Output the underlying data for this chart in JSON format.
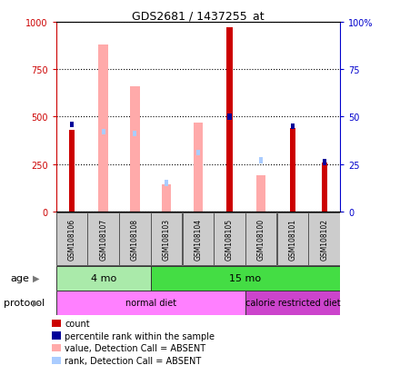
{
  "title": "GDS2681 / 1437255_at",
  "samples": [
    "GSM108106",
    "GSM108107",
    "GSM108108",
    "GSM108103",
    "GSM108104",
    "GSM108105",
    "GSM108100",
    "GSM108101",
    "GSM108102"
  ],
  "count_values": [
    430,
    0,
    0,
    0,
    0,
    970,
    0,
    440,
    260
  ],
  "rank_percentile": [
    46,
    0,
    0,
    0,
    0,
    50,
    0,
    45,
    26
  ],
  "absent_value_values": [
    0,
    880,
    660,
    145,
    470,
    0,
    190,
    0,
    0
  ],
  "absent_rank_pct": [
    0,
    42,
    41,
    15,
    31,
    0,
    27,
    0,
    0
  ],
  "ylim_left": [
    0,
    1000
  ],
  "ylim_right": [
    0,
    100
  ],
  "yticks_left": [
    0,
    250,
    500,
    750,
    1000
  ],
  "yticks_right": [
    0,
    25,
    50,
    75,
    100
  ],
  "age_groups": [
    {
      "label": "4 mo",
      "start": 0,
      "end": 3,
      "color": "#aaeaaa"
    },
    {
      "label": "15 mo",
      "start": 3,
      "end": 9,
      "color": "#44dd44"
    }
  ],
  "protocol_groups": [
    {
      "label": "normal diet",
      "start": 0,
      "end": 6,
      "color": "#ff80ff"
    },
    {
      "label": "calorie restricted diet",
      "start": 6,
      "end": 9,
      "color": "#cc44cc"
    }
  ],
  "color_count": "#cc0000",
  "color_rank": "#000099",
  "color_absent_value": "#ffaaaa",
  "color_absent_rank": "#aaccff",
  "background_color": "#ffffff",
  "left_axis_color": "#cc0000",
  "right_axis_color": "#0000cc"
}
